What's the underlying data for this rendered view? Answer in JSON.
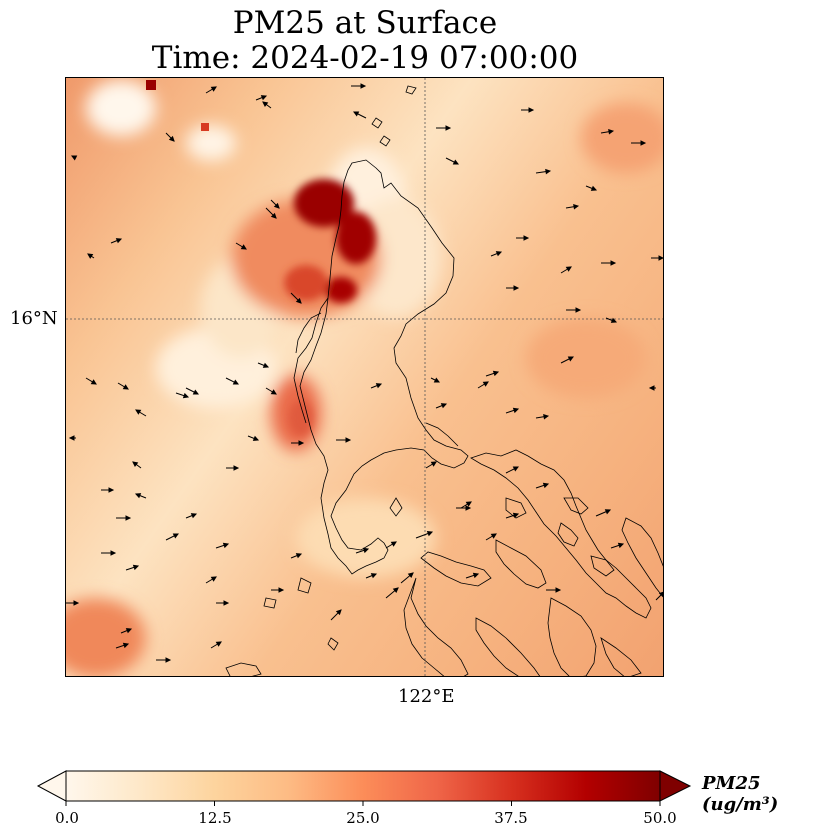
{
  "title": {
    "line1": "PM25 at Surface",
    "line2": "Time: 2024-02-19 07:00:00"
  },
  "axes": {
    "lat_label": "16°N",
    "lon_label": "122°E"
  },
  "colorbar": {
    "label": "PM25 (ug/m³)",
    "ticks": [
      "0.0",
      "12.5",
      "25.0",
      "37.5",
      "50.0"
    ],
    "min": 0,
    "max": 50,
    "cmap": [
      "#fff7ec",
      "#fee8c8",
      "#fdd49e",
      "#fdbb84",
      "#fc8d59",
      "#ef6548",
      "#d7301f",
      "#b30000",
      "#7f0000"
    ]
  },
  "colors": {
    "coastline": "#000000",
    "gridline": "#555555"
  }
}
